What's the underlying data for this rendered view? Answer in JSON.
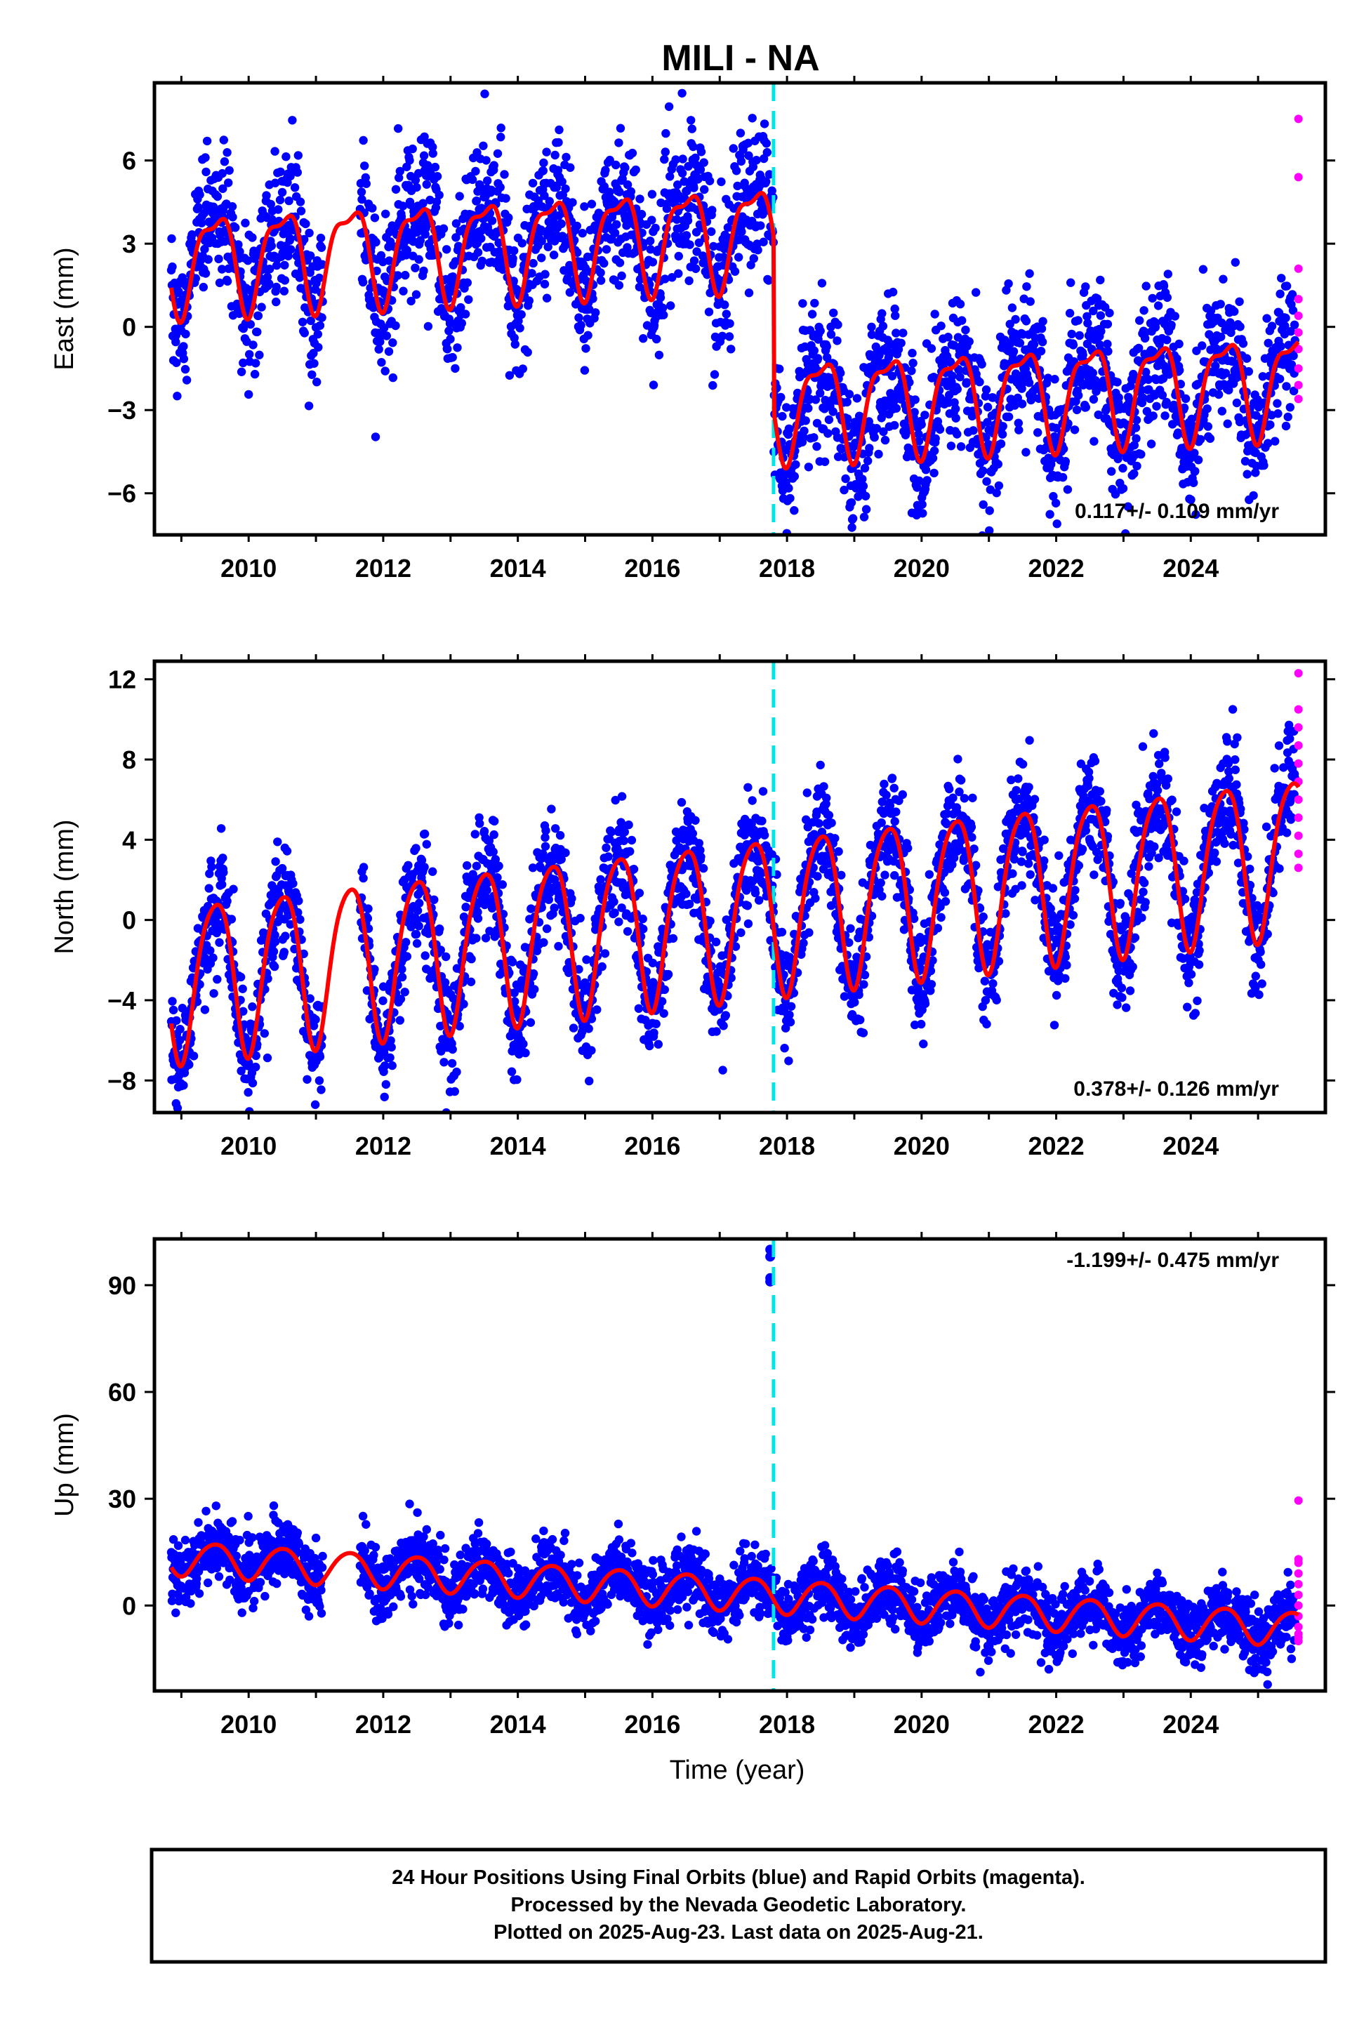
{
  "chart_data": {
    "title": "MILI - NA",
    "type": "scatter",
    "xlabel": "Time (year)",
    "x_range": [
      2008.6,
      2026.0
    ],
    "x_ticks": [
      "2010",
      "2012",
      "2014",
      "2016",
      "2018",
      "2020",
      "2022",
      "2024"
    ],
    "offset_marker_year": 2017.8,
    "legend": "none",
    "panels": [
      {
        "name": "east",
        "ylabel": "East (mm)",
        "ylim": [
          -7.5,
          8.8
        ],
        "y_ticks": [
          "6",
          "3",
          "0",
          "−3",
          "−6"
        ],
        "rate_text": "0.117+/- 0.109 mm/yr",
        "model": {
          "base1": 2.9,
          "base2": -3.4,
          "trend": 0.117,
          "amp1": 1.7,
          "amp2": 0.6,
          "jump_year": 2017.8
        },
        "noise": 1.3,
        "colors": {
          "final": "#0000ff",
          "rapid": "#ff00ff",
          "model": "#ff0000",
          "offset": "#00e5e5"
        },
        "rapid_y": [
          7.5,
          5.4,
          2.1,
          1.0,
          0.4,
          -0.2,
          -0.8,
          -1.5,
          -2.1,
          -2.6
        ]
      },
      {
        "name": "north",
        "ylabel": "North (mm)",
        "ylim": [
          -9.6,
          12.9
        ],
        "y_ticks": [
          "12",
          "8",
          "4",
          "0",
          "−4",
          "−8"
        ],
        "rate_text": "0.378+/- 0.126 mm/yr",
        "model": {
          "base1": -1.3,
          "base2": -1.3,
          "trend": 0.378,
          "amp1": 3.9,
          "amp2": 0.6,
          "jump_year": 2017.8
        },
        "noise": 1.4,
        "colors": {
          "final": "#0000ff",
          "rapid": "#ff00ff",
          "model": "#ff0000",
          "offset": "#00e5e5"
        },
        "rapid_y": [
          12.3,
          10.5,
          9.6,
          8.7,
          7.8,
          6.9,
          6.0,
          5.1,
          4.2,
          3.3,
          2.6
        ]
      },
      {
        "name": "up",
        "ylabel": "Up (mm)",
        "ylim": [
          -24,
          103
        ],
        "y_ticks": [
          "90",
          "60",
          "30",
          "0"
        ],
        "rate_text": "-1.199+/- 0.475 mm/yr",
        "model": {
          "base1": 8.6,
          "base2": 8.6,
          "trend": -1.199,
          "amp1": 4.8,
          "amp2": 0.5,
          "jump_year": 2017.8
        },
        "noise": 4.6,
        "colors": {
          "final": "#0000ff",
          "rapid": "#ff00ff",
          "model": "#ff0000",
          "offset": "#00e5e5"
        },
        "outliers": [
          [
            2017.75,
            100
          ],
          [
            2017.75,
            98
          ],
          [
            2017.75,
            92
          ],
          [
            2017.75,
            91
          ]
        ],
        "rapid_y": [
          29.5,
          13,
          12,
          9,
          6,
          3,
          0,
          -3,
          -6,
          -8,
          -9,
          -10
        ]
      }
    ],
    "footer": {
      "line1": "24 Hour Positions Using Final Orbits (blue) and Rapid Orbits (magenta).",
      "line2": "Processed by the Nevada Geodetic Laboratory.",
      "line3": "Plotted on 2025-Aug-23. Last data on 2025-Aug-21."
    }
  }
}
